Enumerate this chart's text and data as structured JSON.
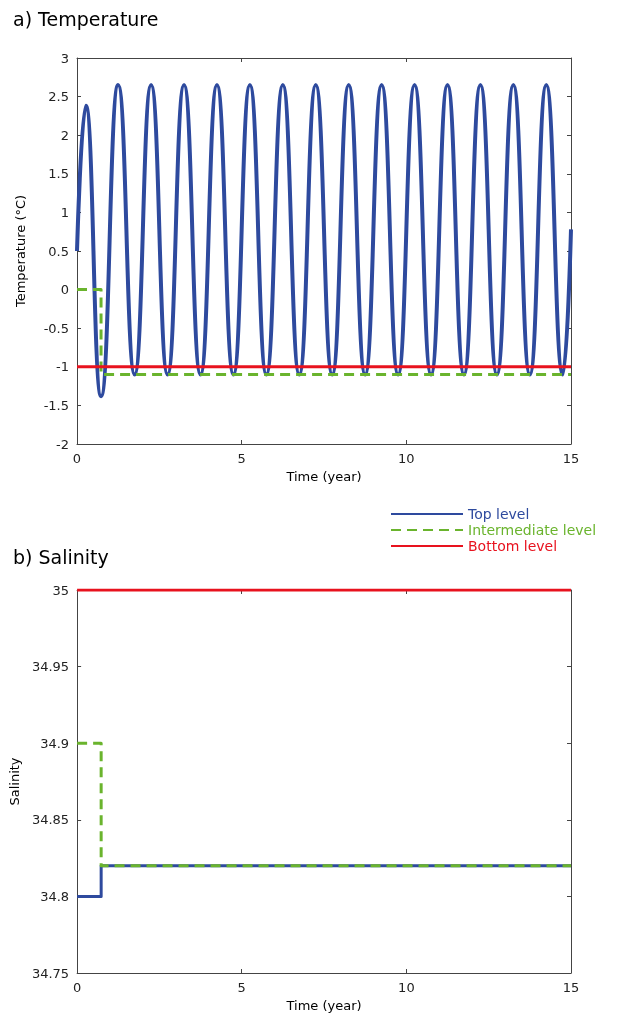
{
  "chart_data": [
    {
      "type": "line",
      "title": "a) Temperature",
      "xlabel": "Time (year)",
      "ylabel": "Temperature (°C)",
      "xlim": [
        0,
        15
      ],
      "xticks": [
        0,
        5,
        10,
        15
      ],
      "ylim": [
        -2,
        3
      ],
      "yticks": [
        -2,
        -1.5,
        -1,
        -0.5,
        0,
        0.5,
        1,
        1.5,
        2,
        2.5,
        3
      ],
      "grid": false,
      "legend": "bottom right",
      "marker": "none",
      "series": [
        {
          "name": "Top level",
          "color": "#2e4a9e",
          "x": [
            0,
            0.27,
            0.73,
            1.25,
            1.75,
            2.25,
            2.75,
            3.25,
            3.75,
            4.25,
            4.75,
            5.25,
            5.75,
            6.25,
            6.75,
            7.25,
            7.75,
            8.25,
            8.75,
            9.25,
            9.75,
            10.25,
            10.75,
            11.25,
            11.75,
            12.25,
            12.75,
            13.25,
            13.75,
            14.25,
            14.75,
            15
          ],
          "values": [
            0.5,
            2.38,
            -1.38,
            2.65,
            -1.1,
            2.65,
            -1.1,
            2.65,
            -1.1,
            2.65,
            -1.1,
            2.65,
            -1.1,
            2.65,
            -1.1,
            2.65,
            -1.1,
            2.65,
            -1.1,
            2.65,
            -1.1,
            2.65,
            -1.1,
            2.65,
            -1.1,
            2.65,
            -1.1,
            2.65,
            -1.1,
            2.65,
            -1.1,
            0.78
          ]
        },
        {
          "name": "Intermediate level",
          "type": "step",
          "line_style": "dashed",
          "color": "#6ab42d",
          "x": [
            0,
            0.73,
            15
          ],
          "values": [
            0,
            -1.1,
            -1.1
          ]
        },
        {
          "name": "Bottom level",
          "color": "#e8121e",
          "x": [
            0,
            15
          ],
          "values": [
            -1,
            -1
          ]
        }
      ]
    },
    {
      "type": "line",
      "title": "b) Salinity",
      "xlabel": "Time (year)",
      "ylabel": "Salinity",
      "xlim": [
        0,
        15
      ],
      "xticks": [
        0,
        5,
        10,
        15
      ],
      "ylim": [
        34.75,
        35
      ],
      "yticks": [
        34.75,
        34.8,
        34.85,
        34.9,
        34.95,
        35
      ],
      "grid": false,
      "marker": "none",
      "series": [
        {
          "type": "step",
          "color": "#2e4a9e",
          "x": [
            0,
            0.73,
            15
          ],
          "values": [
            34.8,
            34.82,
            34.82
          ]
        },
        {
          "type": "step",
          "line_style": "dashed",
          "color": "#6ab42d",
          "x": [
            0,
            0.73,
            15
          ],
          "values": [
            34.9,
            34.82,
            34.82
          ]
        },
        {
          "color": "#e8121e",
          "x": [
            0,
            15
          ],
          "values": [
            35,
            35
          ]
        }
      ]
    }
  ]
}
